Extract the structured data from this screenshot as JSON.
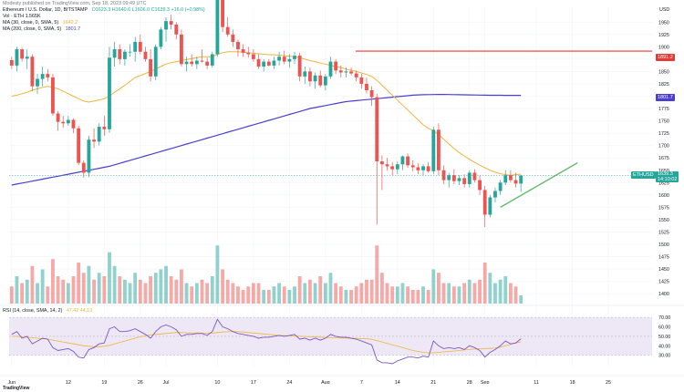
{
  "header": {
    "published_by": "Modesty published on TradingView.com, Sep 18, 2023 09:49 UTC",
    "symbol_line": "Ethereum / U.S. Dollar, 1D, BITSTAMP",
    "ohlc": "O1623.3  H1640.6  L1606.0  C1639.3  +16.0 (+0.98%)",
    "vol_line": "Vol · ETH  1.565K",
    "ma30_line": "MA (30, close, 0, SMA, 5)",
    "ma30_value": "1642.2",
    "ma200_line": "MA (200, close, 0, SMA, 5)",
    "ma200_value": "1801.7",
    "rsi_line": "RSI (14, close, SMA, 14, 2)",
    "rsi_values": "47.42  44.13"
  },
  "axis_top_label": "USD",
  "colors": {
    "up": "#26a69a",
    "down": "#ef5350",
    "ma30": "#f0b43a",
    "ma200": "#4a3fd1",
    "resistance": "#e53935",
    "trend": "#66bb6a",
    "rsi_line": "#7e57c2",
    "rsi_band": "#ede7f6"
  },
  "price_badges": {
    "resistance": "1891.2",
    "ma200": "1801.7",
    "eth_label": "ETHUSD",
    "last": "1639.3",
    "countdown": "14:10:02"
  },
  "rsi_axis_labels": [
    "70.00",
    "60.00",
    "50.00",
    "40.00",
    "30.00"
  ],
  "footer": {
    "brand": "TradingView"
  },
  "chart_data": {
    "type": "candlestick",
    "title": "Ethereum / U.S. Dollar, 1D, BITSTAMP",
    "ylabel": "USD",
    "ylim": [
      1380,
      1980
    ],
    "y_ticks": [
      1950,
      1925,
      1900,
      1875,
      1850,
      1825,
      1800,
      1775,
      1750,
      1725,
      1700,
      1675,
      1650,
      1625,
      1600,
      1575,
      1550,
      1525,
      1500,
      1475,
      1450,
      1425,
      1400
    ],
    "x_ticks": [
      "Jun",
      "12",
      "19",
      "26",
      "Jul",
      "10",
      "17",
      "24",
      "Aug",
      "7",
      "14",
      "21",
      "28",
      "Sep",
      "11",
      "18",
      "25"
    ],
    "x_tick_day_index": [
      0,
      11,
      18,
      25,
      30,
      40,
      47,
      54,
      61,
      68,
      75,
      82,
      89,
      92,
      102,
      109,
      116
    ],
    "candles_ohlc": [
      [
        1873,
        1880,
        1855,
        1862
      ],
      [
        1862,
        1900,
        1850,
        1895
      ],
      [
        1895,
        1898,
        1870,
        1876
      ],
      [
        1876,
        1895,
        1855,
        1880
      ],
      [
        1880,
        1885,
        1810,
        1820
      ],
      [
        1820,
        1845,
        1805,
        1835
      ],
      [
        1835,
        1860,
        1820,
        1845
      ],
      [
        1845,
        1855,
        1830,
        1838
      ],
      [
        1838,
        1845,
        1760,
        1765
      ],
      [
        1765,
        1770,
        1730,
        1748
      ],
      [
        1748,
        1760,
        1736,
        1745
      ],
      [
        1745,
        1760,
        1740,
        1752
      ],
      [
        1752,
        1755,
        1725,
        1735
      ],
      [
        1735,
        1740,
        1660,
        1665
      ],
      [
        1665,
        1670,
        1635,
        1645
      ],
      [
        1645,
        1720,
        1636,
        1712
      ],
      [
        1712,
        1735,
        1695,
        1708
      ],
      [
        1708,
        1745,
        1700,
        1738
      ],
      [
        1738,
        1760,
        1720,
        1733
      ],
      [
        1733,
        1900,
        1726,
        1878
      ],
      [
        1878,
        1910,
        1860,
        1895
      ],
      [
        1895,
        1905,
        1865,
        1875
      ],
      [
        1875,
        1895,
        1862,
        1890
      ],
      [
        1890,
        1905,
        1880,
        1890
      ],
      [
        1890,
        1920,
        1870,
        1910
      ],
      [
        1910,
        1925,
        1885,
        1890
      ],
      [
        1890,
        1900,
        1870,
        1875
      ],
      [
        1875,
        1895,
        1830,
        1840
      ],
      [
        1840,
        1905,
        1832,
        1900
      ],
      [
        1900,
        1940,
        1895,
        1935
      ],
      [
        1935,
        1960,
        1910,
        1952
      ],
      [
        1952,
        1965,
        1935,
        1945
      ],
      [
        1945,
        1950,
        1915,
        1925
      ],
      [
        1925,
        1935,
        1860,
        1865
      ],
      [
        1865,
        1880,
        1850,
        1870
      ],
      [
        1870,
        1885,
        1860,
        1865
      ],
      [
        1865,
        1880,
        1855,
        1872
      ],
      [
        1872,
        1895,
        1868,
        1870
      ],
      [
        1870,
        1878,
        1855,
        1862
      ],
      [
        1862,
        1890,
        1858,
        1885
      ],
      [
        1885,
        2025,
        1880,
        2015
      ],
      [
        2015,
        2020,
        1930,
        1940
      ],
      [
        1940,
        1960,
        1920,
        1925
      ],
      [
        1925,
        1935,
        1900,
        1910
      ],
      [
        1910,
        1915,
        1880,
        1895
      ],
      [
        1895,
        1905,
        1880,
        1888
      ],
      [
        1888,
        1900,
        1878,
        1885
      ],
      [
        1885,
        1895,
        1870,
        1875
      ],
      [
        1875,
        1885,
        1855,
        1860
      ],
      [
        1860,
        1875,
        1850,
        1870
      ],
      [
        1870,
        1875,
        1860,
        1862
      ],
      [
        1862,
        1880,
        1855,
        1872
      ],
      [
        1872,
        1890,
        1862,
        1880
      ],
      [
        1880,
        1892,
        1865,
        1870
      ],
      [
        1870,
        1885,
        1858,
        1875
      ],
      [
        1875,
        1890,
        1865,
        1882
      ],
      [
        1882,
        1888,
        1830,
        1840
      ],
      [
        1840,
        1860,
        1825,
        1850
      ],
      [
        1850,
        1858,
        1820,
        1830
      ],
      [
        1830,
        1848,
        1815,
        1842
      ],
      [
        1842,
        1852,
        1818,
        1822
      ],
      [
        1822,
        1845,
        1812,
        1840
      ],
      [
        1840,
        1880,
        1835,
        1870
      ],
      [
        1870,
        1875,
        1845,
        1852
      ],
      [
        1852,
        1862,
        1838,
        1848
      ],
      [
        1848,
        1858,
        1838,
        1850
      ],
      [
        1850,
        1858,
        1842,
        1846
      ],
      [
        1846,
        1852,
        1830,
        1838
      ],
      [
        1838,
        1845,
        1815,
        1825
      ],
      [
        1825,
        1838,
        1805,
        1812
      ],
      [
        1812,
        1820,
        1780,
        1798
      ],
      [
        1798,
        1805,
        1540,
        1668
      ],
      [
        1668,
        1680,
        1610,
        1662
      ],
      [
        1662,
        1675,
        1650,
        1658
      ],
      [
        1658,
        1666,
        1640,
        1652
      ],
      [
        1652,
        1668,
        1642,
        1662
      ],
      [
        1662,
        1680,
        1650,
        1678
      ],
      [
        1678,
        1684,
        1655,
        1660
      ],
      [
        1660,
        1670,
        1648,
        1656
      ],
      [
        1656,
        1664,
        1642,
        1650
      ],
      [
        1650,
        1662,
        1640,
        1658
      ],
      [
        1658,
        1666,
        1645,
        1648
      ],
      [
        1648,
        1738,
        1642,
        1732
      ],
      [
        1732,
        1745,
        1640,
        1650
      ],
      [
        1650,
        1660,
        1622,
        1630
      ],
      [
        1630,
        1645,
        1615,
        1640
      ],
      [
        1640,
        1652,
        1622,
        1628
      ],
      [
        1628,
        1640,
        1620,
        1634
      ],
      [
        1634,
        1642,
        1615,
        1622
      ],
      [
        1622,
        1650,
        1615,
        1645
      ],
      [
        1645,
        1652,
        1625,
        1630
      ],
      [
        1630,
        1640,
        1600,
        1610
      ],
      [
        1610,
        1618,
        1535,
        1560
      ],
      [
        1560,
        1600,
        1555,
        1595
      ],
      [
        1595,
        1615,
        1585,
        1608
      ],
      [
        1608,
        1630,
        1600,
        1625
      ],
      [
        1625,
        1650,
        1620,
        1640
      ],
      [
        1640,
        1650,
        1625,
        1630
      ],
      [
        1630,
        1645,
        1615,
        1623
      ],
      [
        1623,
        1640.6,
        1606,
        1639.3
      ]
    ],
    "volume_relative": [
      0.25,
      0.4,
      0.3,
      0.35,
      0.55,
      0.3,
      0.5,
      0.25,
      0.65,
      0.4,
      0.35,
      0.3,
      0.4,
      0.6,
      0.45,
      0.55,
      0.35,
      0.45,
      0.4,
      0.75,
      0.55,
      0.4,
      0.35,
      0.3,
      0.45,
      0.35,
      0.3,
      0.4,
      0.45,
      0.5,
      0.55,
      0.4,
      0.35,
      0.5,
      0.3,
      0.25,
      0.3,
      0.35,
      0.3,
      0.4,
      0.85,
      0.5,
      0.35,
      0.3,
      0.25,
      0.2,
      0.25,
      0.3,
      0.3,
      0.2,
      0.2,
      0.25,
      0.3,
      0.25,
      0.2,
      0.25,
      0.4,
      0.3,
      0.35,
      0.3,
      0.4,
      0.3,
      0.45,
      0.3,
      0.25,
      0.2,
      0.2,
      0.25,
      0.3,
      0.35,
      0.35,
      0.85,
      0.45,
      0.3,
      0.25,
      0.25,
      0.3,
      0.25,
      0.2,
      0.2,
      0.25,
      0.2,
      0.5,
      0.45,
      0.3,
      0.3,
      0.25,
      0.25,
      0.3,
      0.35,
      0.3,
      0.35,
      0.6,
      0.45,
      0.3,
      0.35,
      0.4,
      0.3,
      0.25,
      0.12
    ],
    "ma30": [
      1800,
      1802,
      1805,
      1808,
      1812,
      1815,
      1818,
      1820,
      1818,
      1815,
      1810,
      1805,
      1800,
      1795,
      1790,
      1788,
      1790,
      1792,
      1795,
      1800,
      1808,
      1815,
      1822,
      1830,
      1838,
      1842,
      1846,
      1850,
      1855,
      1860,
      1865,
      1868,
      1870,
      1872,
      1874,
      1876,
      1878,
      1880,
      1880,
      1880,
      1885,
      1888,
      1890,
      1890,
      1890,
      1889,
      1888,
      1887,
      1886,
      1885,
      1884,
      1884,
      1883,
      1882,
      1881,
      1880,
      1878,
      1875,
      1872,
      1870,
      1867,
      1865,
      1862,
      1860,
      1858,
      1855,
      1852,
      1850,
      1847,
      1844,
      1840,
      1832,
      1822,
      1812,
      1802,
      1792,
      1782,
      1772,
      1762,
      1752,
      1742,
      1735,
      1730,
      1722,
      1713,
      1703,
      1694,
      1686,
      1679,
      1672,
      1666,
      1660,
      1655,
      1650,
      1646,
      1643,
      1641,
      1640,
      1641,
      1642.2
    ],
    "ma200": [
      1620,
      1622,
      1624,
      1626,
      1628,
      1630,
      1632,
      1634,
      1636,
      1638,
      1640,
      1642,
      1644,
      1646,
      1648,
      1650,
      1652,
      1654,
      1656,
      1658,
      1661,
      1664,
      1667,
      1670,
      1673,
      1676,
      1679,
      1682,
      1685,
      1688,
      1691,
      1694,
      1697,
      1700,
      1703,
      1706,
      1709,
      1712,
      1715,
      1718,
      1721,
      1724,
      1727,
      1730,
      1733,
      1736,
      1739,
      1742,
      1745,
      1748,
      1751,
      1754,
      1757,
      1760,
      1763,
      1766,
      1769,
      1772,
      1775,
      1777,
      1779,
      1781,
      1783,
      1785,
      1787,
      1789,
      1790,
      1791,
      1792,
      1793,
      1794,
      1795,
      1796,
      1797,
      1798,
      1799,
      1800,
      1801,
      1802,
      1802.5,
      1803,
      1803.2,
      1803.4,
      1803.5,
      1803.5,
      1803.4,
      1803.2,
      1803,
      1802.8,
      1802.6,
      1802.4,
      1802.2,
      1802,
      1801.9,
      1801.8,
      1801.8,
      1801.7,
      1801.7,
      1801.7,
      1801.7
    ],
    "resistance_level": 1891.2,
    "trendline": {
      "from": [
        95,
        1575
      ],
      "to": [
        110,
        1665
      ]
    },
    "rsi_ylim": [
      20,
      75
    ],
    "rsi": [
      52,
      55,
      48,
      50,
      42,
      45,
      48,
      47,
      38,
      35,
      36,
      37,
      34,
      28,
      27,
      36,
      38,
      42,
      43,
      58,
      60,
      55,
      55,
      56,
      58,
      55,
      52,
      48,
      55,
      60,
      62,
      60,
      57,
      50,
      52,
      52,
      53,
      53,
      51,
      55,
      68,
      60,
      58,
      55,
      53,
      52,
      51,
      50,
      48,
      49,
      49,
      50,
      51,
      50,
      51,
      52,
      47,
      48,
      46,
      48,
      46,
      48,
      52,
      50,
      49,
      49,
      48,
      47,
      45,
      43,
      41,
      25,
      22,
      22,
      21,
      24,
      26,
      28,
      28,
      27,
      29,
      28,
      45,
      40,
      37,
      38,
      37,
      38,
      36,
      40,
      38,
      35,
      28,
      33,
      36,
      40,
      45,
      42,
      43,
      47.42
    ],
    "rsi_ma": [
      50,
      50,
      49.5,
      49,
      48.5,
      48,
      47.5,
      47,
      46,
      45,
      44,
      43,
      42,
      41,
      40,
      39.5,
      39,
      39,
      39.5,
      40.5,
      42,
      43.5,
      45,
      46.5,
      48,
      49.5,
      50.5,
      51.5,
      52,
      52.5,
      53,
      53.5,
      54,
      54,
      53.8,
      53.6,
      53.5,
      53.4,
      53.3,
      53.5,
      54,
      54.5,
      54.8,
      55,
      54.8,
      54.5,
      54,
      53.5,
      53,
      52.5,
      52,
      51.5,
      51,
      50.8,
      50.5,
      50.3,
      50,
      49.8,
      49.5,
      49.2,
      49,
      48.8,
      48.6,
      48.5,
      48.3,
      48.1,
      48,
      47.8,
      47.6,
      47.3,
      46.8,
      45.5,
      44,
      42.5,
      41,
      39.5,
      38,
      36.5,
      35,
      34,
      33,
      32.5,
      32.5,
      33,
      33.5,
      34,
      34.5,
      35,
      35.5,
      36,
      36.5,
      36.8,
      37,
      37.2,
      37.5,
      38.5,
      40,
      41.5,
      43,
      44.13
    ]
  }
}
